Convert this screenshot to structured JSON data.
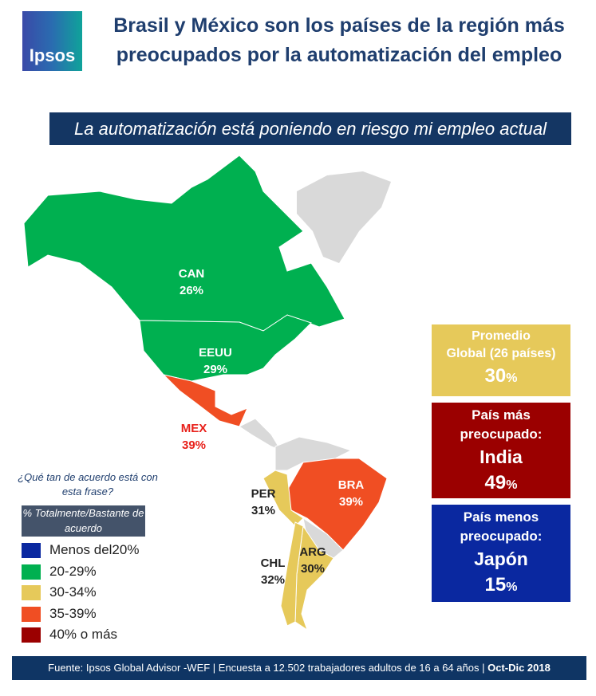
{
  "logo": "Ipsos",
  "title": "Brasil y México son los países de la región más preocupados por la automatización del empleo",
  "subtitle": "La automatización está poniendo en riesgo mi empleo actual",
  "countries": [
    {
      "code": "CAN",
      "value": "26%",
      "color": "#00b050"
    },
    {
      "code": "EEUU",
      "value": "29%",
      "color": "#00b050"
    },
    {
      "code": "MEX",
      "value": "39%",
      "color": "#f04e23"
    },
    {
      "code": "PER",
      "value": "31%",
      "color": "#e6c95a"
    },
    {
      "code": "BRA",
      "value": "39%",
      "color": "#f04e23"
    },
    {
      "code": "CHL",
      "value": "32%",
      "color": "#e6c95a"
    },
    {
      "code": "ARG",
      "value": "30%",
      "color": "#e6c95a"
    }
  ],
  "boxes": {
    "global": {
      "line1": "Promedio",
      "line2": "Global  (26 países)",
      "value": "30",
      "pct": "%",
      "color": "#e6c95a"
    },
    "most": {
      "line1": "País más",
      "line2": "preocupado:",
      "country": "India",
      "value": "49",
      "pct": "%",
      "color": "#9b0000"
    },
    "least": {
      "line1": "País menos",
      "line2": "preocupado:",
      "country": "Japón",
      "value": "15",
      "pct": "%",
      "color": "#0a28a0"
    }
  },
  "legend": {
    "question": "¿Qué tan de acuerdo está con esta frase?",
    "header": "% Totalmente/Bastante de acuerdo",
    "items": [
      {
        "label": "Menos del20%",
        "color": "#0a28a0"
      },
      {
        "label": "20-29%",
        "color": "#00b050"
      },
      {
        "label": "30-34%",
        "color": "#e6c95a"
      },
      {
        "label": "35-39%",
        "color": "#f04e23"
      },
      {
        "label": "40% o más",
        "color": "#9b0000"
      }
    ]
  },
  "footer": {
    "text": "Fuente: Ipsos Global Advisor -WEF | Encuesta a 12.502 trabajadores adultos de 16 a 64 años | ",
    "date": "Oct-Dic 2018"
  }
}
